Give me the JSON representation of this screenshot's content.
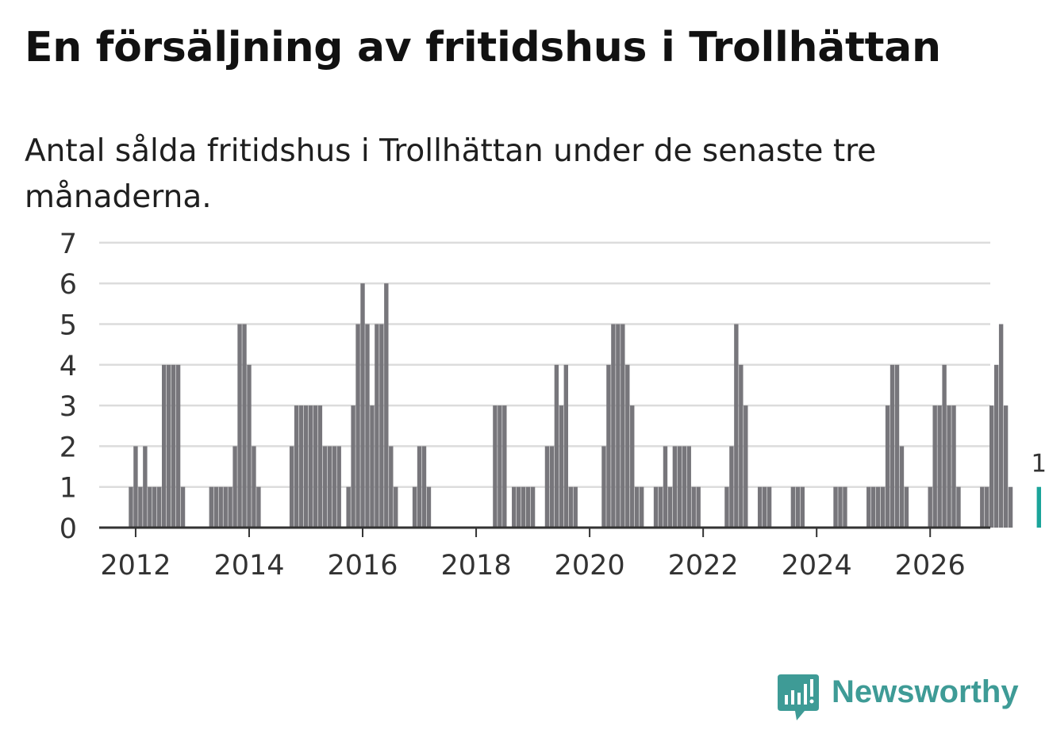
{
  "title": "En försäljning av fritidshus i Trollhättan",
  "subtitle": "Antal sålda fritidshus i Trollhättan under de senaste tre månaderna.",
  "brand": "Newsworthy",
  "colors": {
    "bar": "#77767b",
    "highlight": "#1ba49a",
    "grid": "#dcdcdc",
    "axis": "#333333",
    "brand": "#3e9b96"
  },
  "chart_data": {
    "type": "bar",
    "x_start": "2011-12",
    "y_ticks": [
      0,
      1,
      2,
      3,
      4,
      5,
      6,
      7
    ],
    "x_ticks": [
      "2012",
      "2014",
      "2016",
      "2018",
      "2020",
      "2022",
      "2024",
      "2026"
    ],
    "ylim": [
      0,
      7
    ],
    "grid": true,
    "values": [
      1,
      2,
      1,
      2,
      1,
      1,
      1,
      4,
      4,
      4,
      4,
      1,
      0,
      0,
      0,
      0,
      0,
      1,
      1,
      1,
      1,
      1,
      2,
      5,
      5,
      4,
      2,
      1,
      0,
      0,
      0,
      0,
      0,
      0,
      2,
      3,
      3,
      3,
      3,
      3,
      3,
      2,
      2,
      2,
      2,
      0,
      1,
      3,
      5,
      6,
      5,
      3,
      5,
      5,
      6,
      2,
      1,
      0,
      0,
      0,
      1,
      2,
      2,
      1,
      0,
      0,
      0,
      0,
      0,
      0,
      0,
      0,
      0,
      0,
      0,
      0,
      0,
      3,
      3,
      3,
      0,
      1,
      1,
      1,
      1,
      1,
      0,
      0,
      2,
      2,
      4,
      3,
      4,
      1,
      1,
      0,
      0,
      0,
      0,
      0,
      2,
      4,
      5,
      5,
      5,
      4,
      3,
      1,
      1,
      0,
      0,
      1,
      1,
      2,
      1,
      2,
      2,
      2,
      2,
      1,
      1,
      0,
      0,
      0,
      0,
      0,
      1,
      2,
      5,
      4,
      3,
      0,
      0,
      1,
      1,
      1,
      0,
      0,
      0,
      0,
      1,
      1,
      1,
      0,
      0,
      0,
      0,
      0,
      0,
      1,
      1,
      1,
      0,
      0,
      0,
      0,
      1,
      1,
      1,
      1,
      3,
      4,
      4,
      2,
      1,
      0,
      0,
      0,
      0,
      1,
      3,
      3,
      4,
      3,
      3,
      1,
      0,
      0,
      0,
      0,
      1,
      1,
      3,
      4,
      5,
      3,
      1,
      0,
      0,
      0,
      0,
      0,
      1
    ],
    "highlight_label": "1"
  }
}
